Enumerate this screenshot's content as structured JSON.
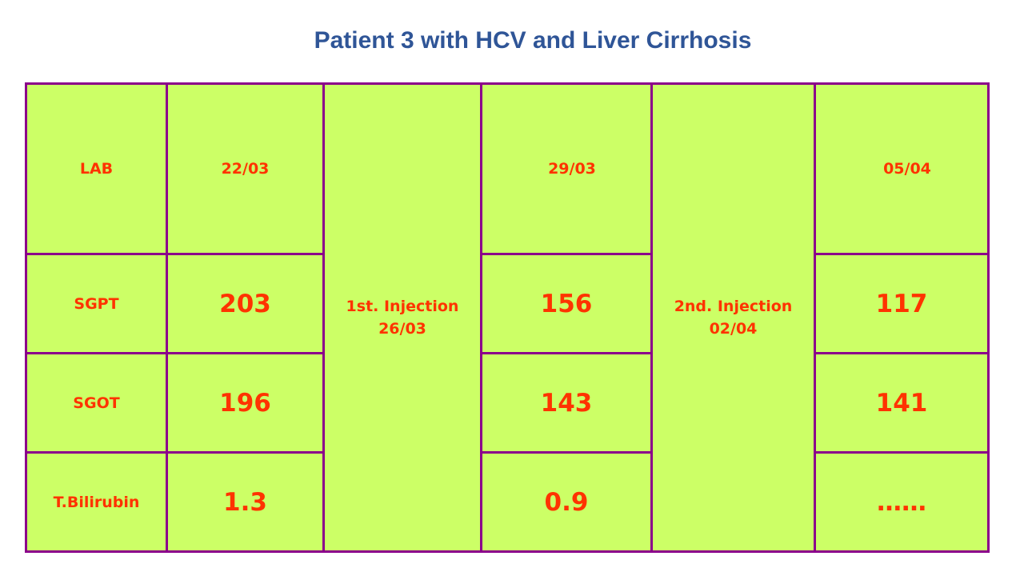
{
  "title": "Patient 3 with HCV and Liver Cirrhosis",
  "table": {
    "headers": [
      "LAB",
      "22/03",
      "29/03",
      "05/04"
    ],
    "injections": [
      {
        "line1": "1st. Injection",
        "line2": "26/03"
      },
      {
        "line1": "2nd. Injection",
        "line2": "02/04"
      }
    ],
    "rows": [
      {
        "label": "SGPT",
        "values": [
          "203",
          "156",
          "117"
        ]
      },
      {
        "label": "SGOT",
        "values": [
          "196",
          "143",
          "141"
        ]
      },
      {
        "label": "T.Bilirubin",
        "values": [
          "1.3",
          "0.9",
          "……"
        ]
      }
    ]
  },
  "colors": {
    "title": "#2f5597",
    "cell_fill": "#ccff66",
    "border": "#8b008b",
    "text": "#ff3300"
  }
}
